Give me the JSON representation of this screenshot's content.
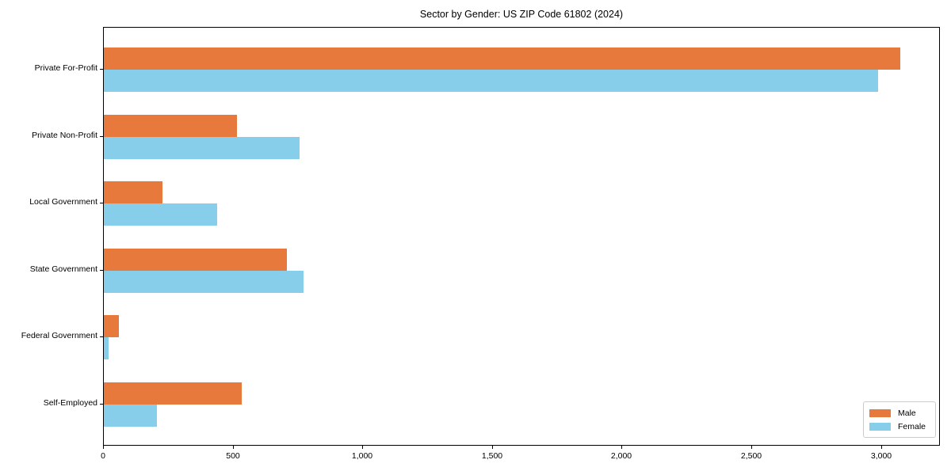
{
  "chart_data": {
    "type": "bar",
    "orientation": "horizontal",
    "title": "Sector by Gender: US ZIP Code 61802 (2024)",
    "categories": [
      "Private For-Profit",
      "Private Non-Profit",
      "Local Government",
      "State Government",
      "Federal Government",
      "Self-Employed"
    ],
    "series": [
      {
        "name": "Male",
        "color": "#e8793c",
        "values": [
          3070,
          514,
          227,
          707,
          58,
          533
        ]
      },
      {
        "name": "Female",
        "color": "#87ceeb",
        "values": [
          2985,
          755,
          438,
          770,
          19,
          204
        ]
      }
    ],
    "xlabel": "",
    "ylabel": "",
    "xlim": [
      0,
      3224
    ],
    "xticks": [
      0,
      500,
      1000,
      1500,
      2000,
      2500,
      3000
    ],
    "xtick_labels": [
      "0",
      "500",
      "1,000",
      "1,500",
      "2,000",
      "2,500",
      "3,000"
    ],
    "grid": false,
    "legend_position": "lower right",
    "frame_color": "#000000",
    "background_color": "#ffffff"
  }
}
